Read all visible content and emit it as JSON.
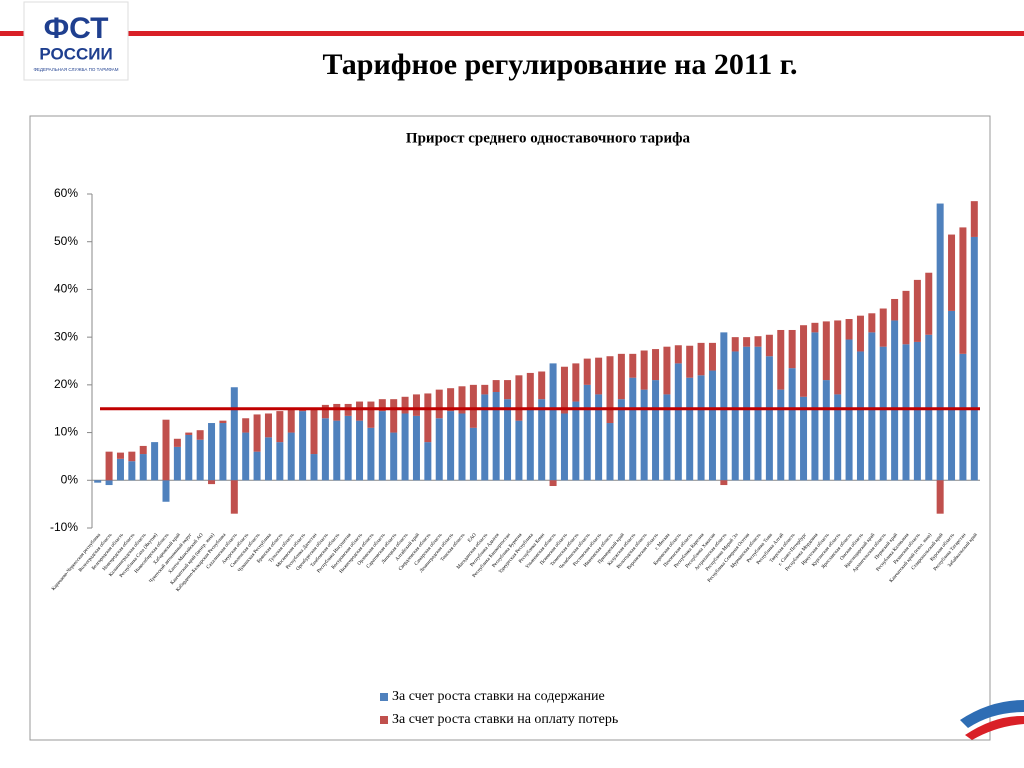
{
  "header": {
    "logo_top": "ФСТ",
    "logo_bottom": "РОССИИ",
    "logo_caption": "ФЕДЕРАЛЬНАЯ СЛУЖБА ПО ТАРИФАМ",
    "title": "Тарифное регулирование на 2011 г."
  },
  "chart_data": {
    "type": "bar",
    "stacked": true,
    "title": "Прирост среднего одноставочного тарифа",
    "categories": [
      "Карачаево-Черкесская республика",
      "Волгоградская область",
      "Белгородская область",
      "Новгородская область",
      "Калининградская область",
      "Республика Саха (Якутия)",
      "Новосибирская область",
      "Хабаровский край",
      "Чукотский автономный округ",
      "Ханты-Мансийский АО",
      "Камчатский край (центр. зона)",
      "Кабардино-Балкарская Республика",
      "Сахалинская область",
      "Амурская область",
      "Смоленская область",
      "Чувашская Республика",
      "Брянская область",
      "Тульская область",
      "Московская область",
      "Республика Дагестан",
      "Оренбургская область",
      "Тамбовская область",
      "Республика Ингушетия",
      "Костромская область",
      "Нижегородская область",
      "Орловская область",
      "Саратовская область",
      "Липецкая область",
      "Алтайский край",
      "Свердловская область",
      "Самарская область",
      "Ленинградская область",
      "Томская область",
      "ЕАО",
      "Магаданская область",
      "Республика Адыгея",
      "Республика Башкортостан",
      "Республика Бурятия",
      "Удмуртская Республика",
      "Республика Коми",
      "Ульяновская область",
      "Псковская область",
      "Тюменская область",
      "Челябинская область",
      "Ростовская область",
      "Ивановская область",
      "Приморский край",
      "Калужская область",
      "Вологодская область",
      "Воронежская область",
      "г. Москва",
      "Кировская область",
      "Пензенская область",
      "Республика Карелия",
      "Республика Хакасия",
      "Астраханская область",
      "Республика Марий Эл",
      "Республика Северная Осетия",
      "Мурманская область",
      "Республика Тыва",
      "Республика Алтай",
      "Тверская область",
      "г. Санкт-Петербург",
      "Республика Мордовия",
      "Иркутская область",
      "Курганская область",
      "Ярославская область",
      "Омская область",
      "Краснодарский край",
      "Архангельская область",
      "Пермский край",
      "Республика Калмыкия",
      "Рязанская область",
      "Камчатский край (изол. зона)",
      "Ставропольский край",
      "Курская область",
      "Республика Татарстан",
      "Забайкальский край"
    ],
    "series": [
      {
        "name": "За счет роста ставки на содержание",
        "color": "#4f81bd",
        "values": [
          -0.5,
          -1,
          4.5,
          4,
          5.5,
          8,
          -4.5,
          7,
          9.5,
          8.5,
          12,
          12,
          19.5,
          10,
          6,
          9,
          8,
          10,
          14.5,
          5.5,
          13,
          12.5,
          13.5,
          12.5,
          11,
          14.5,
          10,
          14,
          13.5,
          8,
          13,
          14.5,
          14,
          11,
          18,
          18.5,
          17,
          12.5,
          15,
          17,
          24.5,
          14,
          16.5,
          20,
          18,
          12,
          17,
          21.5,
          19,
          21,
          18,
          24.5,
          21.5,
          22,
          23,
          31,
          27,
          28,
          28,
          26,
          19,
          23.5,
          17.5,
          31,
          21,
          18,
          29.5,
          27,
          31,
          28,
          33.5,
          28.5,
          29,
          30.5,
          58,
          35.5,
          26.5,
          51
        ]
      },
      {
        "name": "За счет роста ставки на оплату потерь",
        "color": "#c0504d",
        "values": [
          0,
          6,
          1.3,
          2,
          1.7,
          0,
          12.7,
          1.7,
          0.5,
          2,
          -0.8,
          0.5,
          -7,
          3,
          7.8,
          5,
          6.5,
          5,
          0.5,
          9.5,
          2.8,
          3.5,
          2.5,
          4,
          5.5,
          2.5,
          7,
          3.5,
          4.5,
          10.2,
          6,
          4.8,
          5.7,
          9,
          2,
          2.5,
          4,
          9.5,
          7.5,
          5.8,
          -1.2,
          9.8,
          8,
          5.5,
          7.7,
          14,
          9.5,
          5,
          8.2,
          6.5,
          10,
          3.8,
          6.7,
          6.8,
          5.8,
          -1,
          3,
          2,
          2.2,
          4.5,
          12.5,
          8,
          15,
          2,
          12.3,
          15.5,
          4.3,
          7.5,
          4,
          8,
          4.5,
          11.2,
          13,
          13,
          -7,
          16,
          26.5,
          7.5
        ]
      }
    ],
    "ylim": [
      -10,
      60
    ],
    "yticks": [
      {
        "value": -10,
        "label": "-10%"
      },
      {
        "value": 0,
        "label": "0%"
      },
      {
        "value": 10,
        "label": "10%"
      },
      {
        "value": 20,
        "label": "20%"
      },
      {
        "value": 30,
        "label": "30%"
      },
      {
        "value": 40,
        "label": "40%"
      },
      {
        "value": 50,
        "label": "50%"
      },
      {
        "value": 60,
        "label": "60%"
      }
    ],
    "grid": false,
    "legend": "bottom",
    "reference_line": {
      "value": 15,
      "color": "#c00000"
    }
  }
}
